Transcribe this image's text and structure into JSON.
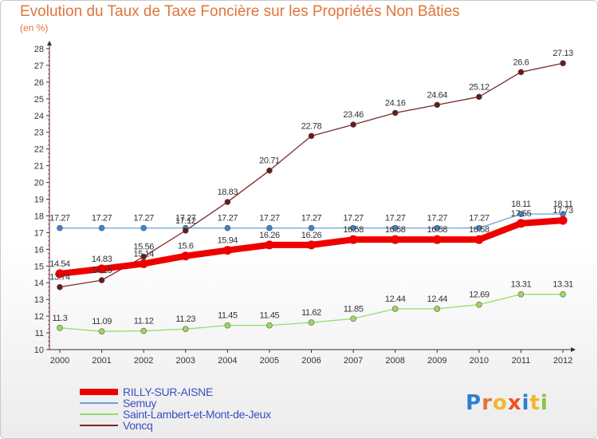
{
  "title": "Evolution du Taux de Taxe Foncière sur les Propriétés Non Bâties",
  "unit_label": "(en %)",
  "logo": {
    "text": "Proxiti",
    "letter_colors": [
      "#2a7fd4",
      "#e0743a",
      "#f2b72b",
      "#ef4f2a",
      "#2a7fd4",
      "#f2b72b",
      "#8ac43f"
    ]
  },
  "chart_data": {
    "type": "line",
    "x": [
      2000,
      2001,
      2002,
      2003,
      2004,
      2005,
      2006,
      2007,
      2008,
      2009,
      2010,
      2011,
      2012
    ],
    "ylim": [
      10,
      28
    ],
    "yticks": [
      10,
      11,
      12,
      13,
      14,
      15,
      16,
      17,
      18,
      19,
      20,
      21,
      22,
      23,
      24,
      25,
      26,
      27,
      28
    ],
    "grid": false,
    "legend_position": "bottom-left",
    "series": [
      {
        "name": "RILLY-SUR-AISNE",
        "color": "#ee0000",
        "values": [
          14.54,
          14.83,
          15.14,
          15.6,
          15.94,
          16.26,
          16.26,
          16.58,
          16.58,
          16.58,
          16.58,
          17.55,
          17.73
        ],
        "labels": [
          "14.54",
          "14.83",
          "15.14",
          "15.6",
          "15.94",
          "16.26",
          "16.26",
          "16.58",
          "16.58",
          "16.58",
          "16.58",
          "17.55",
          "17.73"
        ]
      },
      {
        "name": "Semuy",
        "color": "#6aa2d8",
        "values": [
          17.27,
          17.27,
          17.27,
          17.27,
          17.27,
          17.27,
          17.27,
          17.27,
          17.27,
          17.27,
          17.27,
          18.11,
          18.11
        ],
        "labels": [
          "17.27",
          "17.27",
          "17.27",
          "17.27",
          "17.27",
          "17.27",
          "17.27",
          "17.27",
          "17.27",
          "17.27",
          "17.27",
          "18.11",
          "18.11"
        ]
      },
      {
        "name": "Saint-Lambert-et-Mont-de-Jeux",
        "color": "#99db6a",
        "values": [
          11.3,
          11.09,
          11.12,
          11.23,
          11.45,
          11.45,
          11.62,
          11.85,
          12.44,
          12.44,
          12.69,
          13.31,
          13.31
        ],
        "labels": [
          "11.3",
          "11.09",
          "11.12",
          "11.23",
          "11.45",
          "11.45",
          "11.62",
          "11.85",
          "12.44",
          "12.44",
          "12.69",
          "13.31",
          "13.31"
        ]
      },
      {
        "name": "Voncq",
        "color": "#7a2a2a",
        "values": [
          13.74,
          14.15,
          15.56,
          17.12,
          18.83,
          20.71,
          22.78,
          23.46,
          24.16,
          24.64,
          25.12,
          26.6,
          27.13
        ],
        "labels": [
          "13.74",
          "14.15",
          "15.56",
          "17.12",
          "18.83",
          "20.71",
          "22.78",
          "23.46",
          "24.16",
          "24.64",
          "25.12",
          "26.6",
          "27.13"
        ]
      }
    ]
  }
}
